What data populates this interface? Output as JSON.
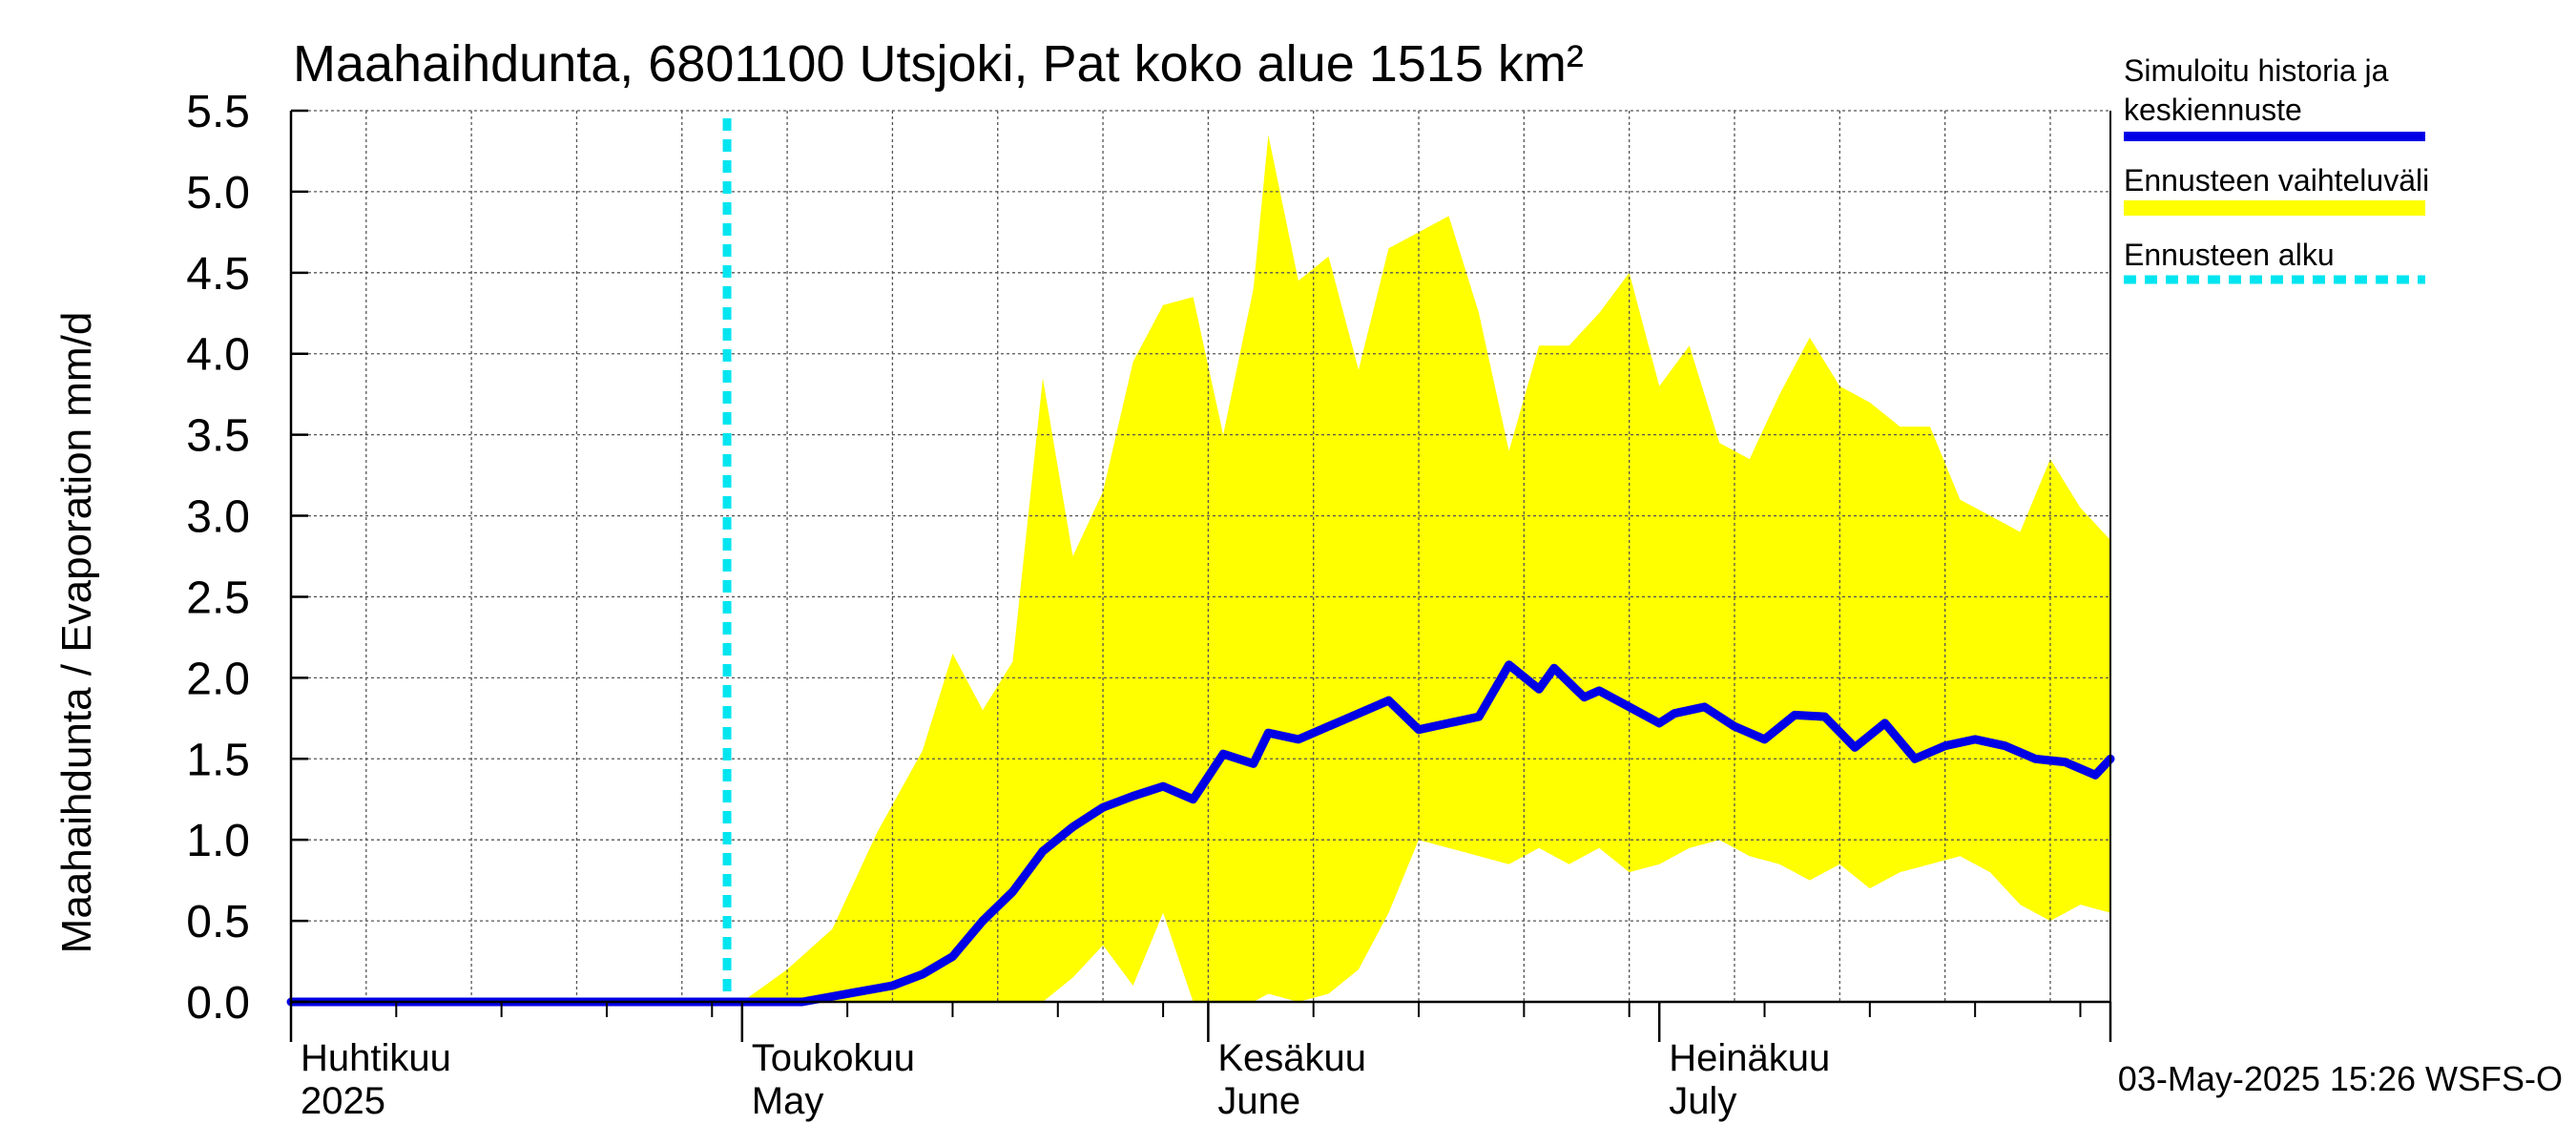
{
  "chart_data": {
    "type": "area",
    "title": "Maahaihdunta, 6801100 Utsjoki, Pat koko alue 1515 km²",
    "ylabel": "Maahaihdunta / Evaporation   mm/d",
    "ylim": [
      0,
      5.5
    ],
    "y_ticks": [
      "0.0",
      "0.5",
      "1.0",
      "1.5",
      "2.0",
      "2.5",
      "3.0",
      "3.5",
      "4.0",
      "4.5",
      "5.0",
      "5.5"
    ],
    "x_range": [
      "2025-04-01",
      "2025-07-31"
    ],
    "x_labels": [
      {
        "date": "2025-04-01",
        "line1": "Huhtikuu",
        "line2": "2025"
      },
      {
        "date": "2025-05-01",
        "line1": "Toukokuu",
        "line2": "May"
      },
      {
        "date": "2025-06-01",
        "line1": "Kesäkuu",
        "line2": "June"
      },
      {
        "date": "2025-07-01",
        "line1": "Heinäkuu",
        "line2": "July"
      }
    ],
    "forecast_start": "2025-04-30",
    "colors": {
      "simulated": "#0000e6",
      "range": "#ffff00",
      "forecast_start": "#00e5f0"
    },
    "series": [
      {
        "name": "Simuloitu historia ja keskiennuste",
        "x": [
          "2025-04-01",
          "2025-04-10",
          "2025-04-20",
          "2025-04-30",
          "2025-05-05",
          "2025-05-08",
          "2025-05-11",
          "2025-05-13",
          "2025-05-15",
          "2025-05-17",
          "2025-05-19",
          "2025-05-21",
          "2025-05-23",
          "2025-05-25",
          "2025-05-27",
          "2025-05-29",
          "2025-05-31",
          "2025-06-02",
          "2025-06-04",
          "2025-06-05",
          "2025-06-07",
          "2025-06-09",
          "2025-06-11",
          "2025-06-13",
          "2025-06-15",
          "2025-06-17",
          "2025-06-19",
          "2025-06-21",
          "2025-06-23",
          "2025-06-24",
          "2025-06-26",
          "2025-06-27",
          "2025-06-29",
          "2025-07-01",
          "2025-07-02",
          "2025-07-04",
          "2025-07-06",
          "2025-07-08",
          "2025-07-10",
          "2025-07-12",
          "2025-07-14",
          "2025-07-16",
          "2025-07-18",
          "2025-07-20",
          "2025-07-22",
          "2025-07-24",
          "2025-07-26",
          "2025-07-28",
          "2025-07-30",
          "2025-07-31"
        ],
        "values": [
          0.0,
          0.0,
          0.0,
          0.0,
          0.0,
          0.05,
          0.1,
          0.17,
          0.28,
          0.5,
          0.68,
          0.93,
          1.08,
          1.2,
          1.27,
          1.33,
          1.25,
          1.53,
          1.47,
          1.66,
          1.62,
          1.7,
          1.78,
          1.86,
          1.68,
          1.72,
          1.76,
          2.08,
          1.93,
          2.06,
          1.88,
          1.92,
          1.82,
          1.72,
          1.78,
          1.82,
          1.7,
          1.62,
          1.77,
          1.76,
          1.57,
          1.72,
          1.5,
          1.58,
          1.62,
          1.58,
          1.5,
          1.48,
          1.4,
          1.5
        ]
      }
    ],
    "range_band": {
      "name": "Ennusteen vaihteluväli",
      "x": [
        "2025-04-01",
        "2025-05-01",
        "2025-05-04",
        "2025-05-07",
        "2025-05-10",
        "2025-05-13",
        "2025-05-15",
        "2025-05-17",
        "2025-05-19",
        "2025-05-21",
        "2025-05-23",
        "2025-05-25",
        "2025-05-27",
        "2025-05-29",
        "2025-05-31",
        "2025-06-02",
        "2025-06-04",
        "2025-06-05",
        "2025-06-07",
        "2025-06-09",
        "2025-06-11",
        "2025-06-13",
        "2025-06-15",
        "2025-06-17",
        "2025-06-19",
        "2025-06-21",
        "2025-06-23",
        "2025-06-25",
        "2025-06-27",
        "2025-06-29",
        "2025-07-01",
        "2025-07-03",
        "2025-07-05",
        "2025-07-07",
        "2025-07-09",
        "2025-07-11",
        "2025-07-13",
        "2025-07-15",
        "2025-07-17",
        "2025-07-19",
        "2025-07-21",
        "2025-07-23",
        "2025-07-25",
        "2025-07-27",
        "2025-07-29",
        "2025-07-31"
      ],
      "upper": [
        0.0,
        0.0,
        0.2,
        0.45,
        1.05,
        1.55,
        2.15,
        1.8,
        2.1,
        3.85,
        2.75,
        3.15,
        3.95,
        4.3,
        4.35,
        3.5,
        4.4,
        5.35,
        4.45,
        4.6,
        3.9,
        4.65,
        4.75,
        4.85,
        4.25,
        3.4,
        4.05,
        4.05,
        4.25,
        4.5,
        3.8,
        4.05,
        3.45,
        3.35,
        3.75,
        4.1,
        3.8,
        3.7,
        3.55,
        3.55,
        3.1,
        3.0,
        2.9,
        3.35,
        3.05,
        2.85
      ],
      "lower": [
        0.0,
        0.0,
        0.0,
        0.0,
        0.0,
        0.0,
        0.0,
        0.0,
        0.0,
        0.0,
        0.15,
        0.35,
        0.1,
        0.55,
        0.0,
        0.0,
        0.0,
        0.05,
        0.0,
        0.05,
        0.2,
        0.55,
        1.0,
        0.95,
        0.9,
        0.85,
        0.95,
        0.85,
        0.95,
        0.8,
        0.85,
        0.95,
        1.0,
        0.9,
        0.85,
        0.75,
        0.85,
        0.7,
        0.8,
        0.85,
        0.9,
        0.8,
        0.6,
        0.5,
        0.6,
        0.55
      ]
    },
    "legend": {
      "placement": "right",
      "entries": [
        {
          "line1": "Simuloitu historia ja",
          "line2": "keskiennuste",
          "style": "solid",
          "color": "#0000e6"
        },
        {
          "line1": "Ennusteen vaihteluväli",
          "line2": "",
          "style": "band",
          "color": "#ffff00"
        },
        {
          "line1": "Ennusteen alku",
          "line2": "",
          "style": "dashed",
          "color": "#00e5f0"
        }
      ]
    },
    "footer": "03-May-2025 15:26 WSFS-O",
    "grid": true
  }
}
